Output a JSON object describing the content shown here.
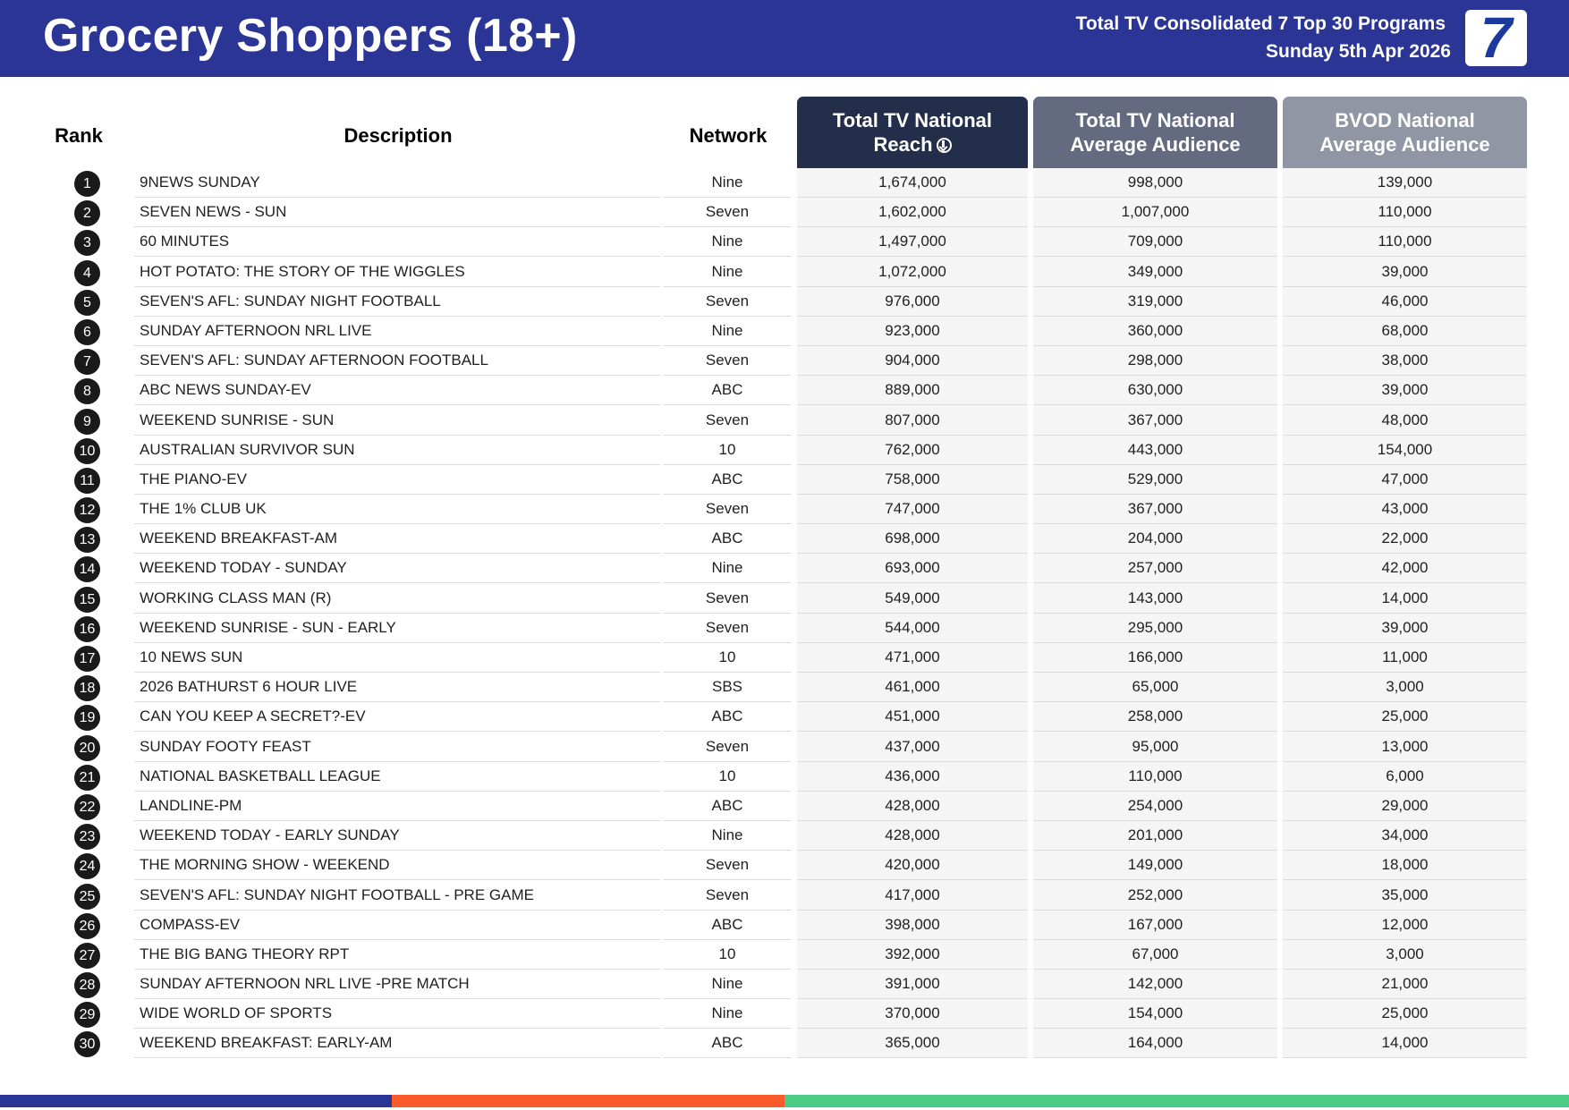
{
  "header": {
    "title": "Grocery Shoppers (18+)",
    "subtitle_line1": "Total TV Consolidated 7 Top 30 Programs",
    "subtitle_line2": "Sunday 5th Apr 2026",
    "logo_text": "7"
  },
  "columns": {
    "rank": "Rank",
    "description": "Description",
    "network": "Network",
    "reach_line1": "Total TV National",
    "reach_line2": "Reach",
    "avg_line1": "Total TV National",
    "avg_line2": "Average Audience",
    "bvod_line1": "BVOD National",
    "bvod_line2": "Average Audience"
  },
  "rows": [
    {
      "rank": "1",
      "description": "9NEWS SUNDAY",
      "network": "Nine",
      "reach": "1,674,000",
      "avg": "998,000",
      "bvod": "139,000"
    },
    {
      "rank": "2",
      "description": "SEVEN NEWS - SUN",
      "network": "Seven",
      "reach": "1,602,000",
      "avg": "1,007,000",
      "bvod": "110,000"
    },
    {
      "rank": "3",
      "description": "60 MINUTES",
      "network": "Nine",
      "reach": "1,497,000",
      "avg": "709,000",
      "bvod": "110,000"
    },
    {
      "rank": "4",
      "description": "HOT POTATO: THE STORY OF THE WIGGLES",
      "network": "Nine",
      "reach": "1,072,000",
      "avg": "349,000",
      "bvod": "39,000"
    },
    {
      "rank": "5",
      "description": "SEVEN'S AFL: SUNDAY NIGHT FOOTBALL",
      "network": "Seven",
      "reach": "976,000",
      "avg": "319,000",
      "bvod": "46,000"
    },
    {
      "rank": "6",
      "description": "SUNDAY AFTERNOON NRL LIVE",
      "network": "Nine",
      "reach": "923,000",
      "avg": "360,000",
      "bvod": "68,000"
    },
    {
      "rank": "7",
      "description": "SEVEN'S AFL: SUNDAY AFTERNOON FOOTBALL",
      "network": "Seven",
      "reach": "904,000",
      "avg": "298,000",
      "bvod": "38,000"
    },
    {
      "rank": "8",
      "description": "ABC NEWS SUNDAY-EV",
      "network": "ABC",
      "reach": "889,000",
      "avg": "630,000",
      "bvod": "39,000"
    },
    {
      "rank": "9",
      "description": "WEEKEND SUNRISE - SUN",
      "network": "Seven",
      "reach": "807,000",
      "avg": "367,000",
      "bvod": "48,000"
    },
    {
      "rank": "10",
      "description": "AUSTRALIAN SURVIVOR SUN",
      "network": "10",
      "reach": "762,000",
      "avg": "443,000",
      "bvod": "154,000"
    },
    {
      "rank": "11",
      "description": "THE PIANO-EV",
      "network": "ABC",
      "reach": "758,000",
      "avg": "529,000",
      "bvod": "47,000"
    },
    {
      "rank": "12",
      "description": "THE 1% CLUB UK",
      "network": "Seven",
      "reach": "747,000",
      "avg": "367,000",
      "bvod": "43,000"
    },
    {
      "rank": "13",
      "description": "WEEKEND BREAKFAST-AM",
      "network": "ABC",
      "reach": "698,000",
      "avg": "204,000",
      "bvod": "22,000"
    },
    {
      "rank": "14",
      "description": "WEEKEND TODAY - SUNDAY",
      "network": "Nine",
      "reach": "693,000",
      "avg": "257,000",
      "bvod": "42,000"
    },
    {
      "rank": "15",
      "description": "WORKING CLASS MAN (R)",
      "network": "Seven",
      "reach": "549,000",
      "avg": "143,000",
      "bvod": "14,000"
    },
    {
      "rank": "16",
      "description": "WEEKEND SUNRISE - SUN - EARLY",
      "network": "Seven",
      "reach": "544,000",
      "avg": "295,000",
      "bvod": "39,000"
    },
    {
      "rank": "17",
      "description": "10 NEWS SUN",
      "network": "10",
      "reach": "471,000",
      "avg": "166,000",
      "bvod": "11,000"
    },
    {
      "rank": "18",
      "description": "2026 BATHURST 6 HOUR LIVE",
      "network": "SBS",
      "reach": "461,000",
      "avg": "65,000",
      "bvod": "3,000"
    },
    {
      "rank": "19",
      "description": "CAN YOU KEEP A SECRET?-EV",
      "network": "ABC",
      "reach": "451,000",
      "avg": "258,000",
      "bvod": "25,000"
    },
    {
      "rank": "20",
      "description": "SUNDAY FOOTY FEAST",
      "network": "Seven",
      "reach": "437,000",
      "avg": "95,000",
      "bvod": "13,000"
    },
    {
      "rank": "21",
      "description": "NATIONAL BASKETBALL LEAGUE",
      "network": "10",
      "reach": "436,000",
      "avg": "110,000",
      "bvod": "6,000"
    },
    {
      "rank": "22",
      "description": "LANDLINE-PM",
      "network": "ABC",
      "reach": "428,000",
      "avg": "254,000",
      "bvod": "29,000"
    },
    {
      "rank": "23",
      "description": "WEEKEND TODAY - EARLY SUNDAY",
      "network": "Nine",
      "reach": "428,000",
      "avg": "201,000",
      "bvod": "34,000"
    },
    {
      "rank": "24",
      "description": "THE MORNING SHOW - WEEKEND",
      "network": "Seven",
      "reach": "420,000",
      "avg": "149,000",
      "bvod": "18,000"
    },
    {
      "rank": "25",
      "description": "SEVEN'S AFL: SUNDAY NIGHT FOOTBALL - PRE GAME",
      "network": "Seven",
      "reach": "417,000",
      "avg": "252,000",
      "bvod": "35,000"
    },
    {
      "rank": "26",
      "description": "COMPASS-EV",
      "network": "ABC",
      "reach": "398,000",
      "avg": "167,000",
      "bvod": "12,000"
    },
    {
      "rank": "27",
      "description": "THE BIG BANG THEORY RPT",
      "network": "10",
      "reach": "392,000",
      "avg": "67,000",
      "bvod": "3,000"
    },
    {
      "rank": "28",
      "description": "SUNDAY AFTERNOON NRL LIVE -PRE MATCH",
      "network": "Nine",
      "reach": "391,000",
      "avg": "142,000",
      "bvod": "21,000"
    },
    {
      "rank": "29",
      "description": "WIDE WORLD OF SPORTS",
      "network": "Nine",
      "reach": "370,000",
      "avg": "154,000",
      "bvod": "25,000"
    },
    {
      "rank": "30",
      "description": "WEEKEND BREAKFAST: EARLY-AM",
      "network": "ABC",
      "reach": "365,000",
      "avg": "164,000",
      "bvod": "14,000"
    }
  ],
  "colors": {
    "header_bg": "#2b3595",
    "reach_header": "#222e4a",
    "avg_header": "#646a80",
    "bvod_header": "#9196a4",
    "footer_blue": "#2b3595",
    "footer_orange": "#fb5a2b",
    "footer_green": "#4ccb85"
  },
  "icons": {
    "sort": "sort-descending-icon",
    "logo": "channel-7-logo"
  }
}
